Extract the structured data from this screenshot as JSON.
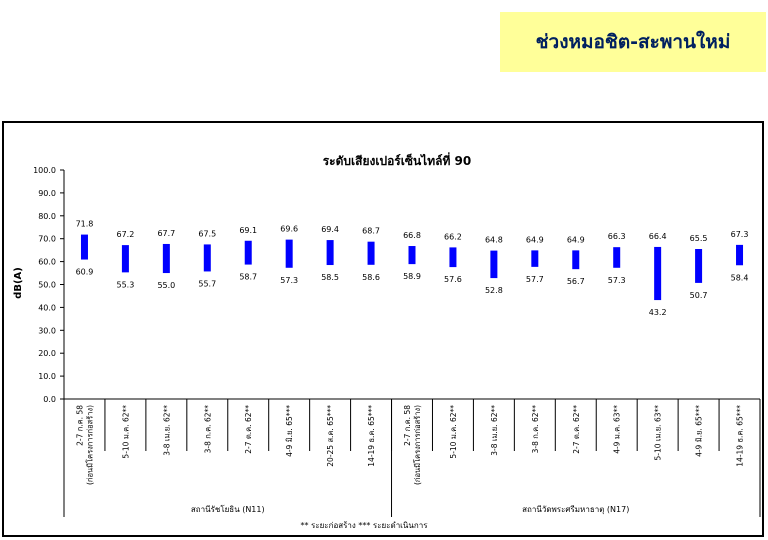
{
  "header": {
    "title": "ช่วงหมอชิต-สะพานใหม่"
  },
  "chart_data": {
    "type": "bar",
    "subtype": "floating-range",
    "title": "ระดับเสียงเปอร์เซ็นไทล์ที่ 90",
    "ylabel": "dB(A)",
    "ylim": [
      0,
      100
    ],
    "yticks": [
      "0.0",
      "10.0",
      "20.0",
      "30.0",
      "40.0",
      "50.0",
      "60.0",
      "70.0",
      "80.0",
      "90.0",
      "100.0"
    ],
    "bar_color": "#0000ff",
    "grid": false,
    "categories": [
      {
        "label": "2-7 ก.ค. 58",
        "label2": "(ก่อนมีโครงการก่อสร้าง)",
        "max": 71.8,
        "min": 60.9
      },
      {
        "label": "5-10 ม.ค. 62**",
        "max": 67.2,
        "min": 55.3
      },
      {
        "label": "3-8 เม.ย. 62**",
        "max": 67.7,
        "min": 55.0
      },
      {
        "label": "3-8 ก.ค. 62**",
        "max": 67.5,
        "min": 55.7
      },
      {
        "label": "2-7 ต.ค. 62**",
        "max": 69.1,
        "min": 58.7
      },
      {
        "label": "4-9 มิ.ย. 65***",
        "max": 69.6,
        "min": 57.3
      },
      {
        "label": "20-25 ส.ค. 65***",
        "max": 69.4,
        "min": 58.5
      },
      {
        "label": "14-19 ธ.ค. 65***",
        "max": 68.7,
        "min": 58.6
      },
      {
        "label": "2-7 ก.ค. 58",
        "label2": "(ก่อนมีโครงการก่อสร้าง)",
        "max": 66.8,
        "min": 58.9
      },
      {
        "label": "5-10 ม.ค. 62**",
        "max": 66.2,
        "min": 57.6
      },
      {
        "label": "3-8 เม.ย. 62**",
        "max": 64.8,
        "min": 52.8
      },
      {
        "label": "3-8 ก.ค. 62**",
        "max": 64.9,
        "min": 57.7
      },
      {
        "label": "2-7 ต.ค. 62**",
        "max": 64.9,
        "min": 56.7
      },
      {
        "label": "4-9 ม.ค. 63**",
        "max": 66.3,
        "min": 57.3
      },
      {
        "label": "5-10 เม.ย. 63**",
        "max": 66.4,
        "min": 43.2
      },
      {
        "label": "4-9 มิ.ย. 65***",
        "max": 65.5,
        "min": 50.7
      },
      {
        "label": "14-19 ธ.ค. 65***",
        "max": 67.3,
        "min": 58.4
      }
    ],
    "groups": [
      {
        "name": "สถานีรัชโยธิน (N11)",
        "count": 8
      },
      {
        "name": "สถานีวัดพระศรีมหาธาตุ (N17)",
        "count": 9
      }
    ],
    "footnote": "** ระยะก่อสร้าง    *** ระยะดำเนินการ"
  }
}
